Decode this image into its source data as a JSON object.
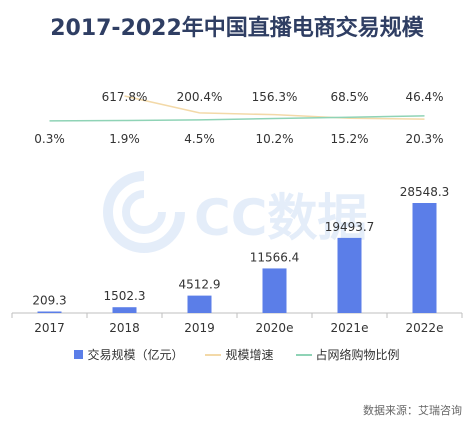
{
  "title": "2017-2022年中国直播电商交易规模",
  "source": "数据来源：艾瑞咨询",
  "watermark": "CC数据",
  "colors": {
    "bar": "#5b7ee8",
    "growth_line": "#f3d9a8",
    "share_line": "#8fd3b6",
    "axis": "#bfbfbf",
    "text": "#333333"
  },
  "chart_data": {
    "type": "bar",
    "categories": [
      "2017",
      "2018",
      "2019",
      "2020e",
      "2021e",
      "2022e"
    ],
    "series": [
      {
        "name": "交易规模（亿元）",
        "type": "bar",
        "values": [
          209.3,
          1502.3,
          4512.9,
          11566.4,
          19493.7,
          28548.3
        ],
        "labels": [
          "209.3",
          "1502.3",
          "4512.9",
          "11566.4",
          "19493.7",
          "28548.3"
        ]
      },
      {
        "name": "规模增速",
        "type": "line",
        "values": [
          null,
          617.8,
          200.4,
          156.3,
          68.5,
          46.4
        ],
        "labels": [
          "",
          "617.8%",
          "200.4%",
          "156.3%",
          "68.5%",
          "46.4%"
        ]
      },
      {
        "name": "占网络购物比例",
        "type": "line",
        "values": [
          0.3,
          1.9,
          4.5,
          10.2,
          15.2,
          20.3
        ],
        "labels": [
          "0.3%",
          "1.9%",
          "4.5%",
          "10.2%",
          "15.2%",
          "20.3%"
        ]
      }
    ],
    "legend": "bottom"
  }
}
